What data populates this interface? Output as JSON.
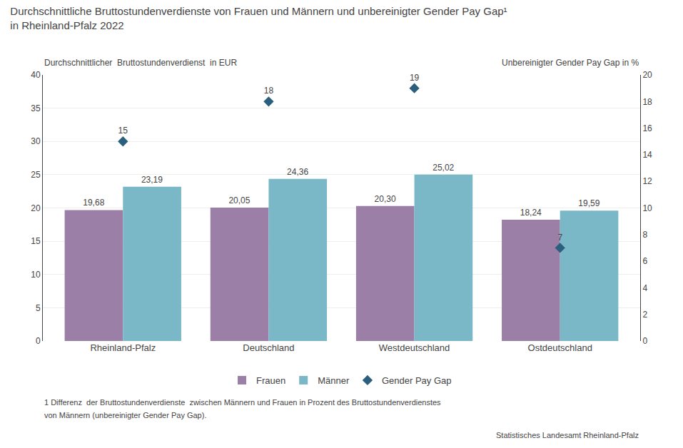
{
  "chart_data": {
    "type": "bar",
    "title": "Durchschnittliche Bruttostundenverdienste von Frauen und Männern und unbereinigter Gender Pay Gap¹",
    "subtitle": "in Rheinland-Pfalz 2022",
    "ylabel": "Durchschnittlicher  Bruttostundenverdienst  in EUR",
    "y2label": "Unbereinigter Gender Pay Gap in %",
    "categories": [
      "Rheinland-Pfalz",
      "Deutschland",
      "Westdeutschland",
      "Ostdeutschland"
    ],
    "series": [
      {
        "name": "Frauen",
        "type": "bar",
        "color": "#9b7fa6",
        "values": [
          19.68,
          20.05,
          20.3,
          18.24
        ],
        "value_labels": [
          "19,68",
          "20,05",
          "20,30",
          "18,24"
        ]
      },
      {
        "name": "Männer",
        "type": "bar",
        "color": "#7ab8c8",
        "values": [
          23.19,
          24.36,
          25.02,
          19.59
        ],
        "value_labels": [
          "23,19",
          "24,36",
          "25,02",
          "19,59"
        ]
      },
      {
        "name": "Gender Pay Gap",
        "type": "scatter",
        "marker": "diamond",
        "color": "#2b5f7e",
        "axis": "y2",
        "values": [
          15,
          18,
          19,
          7
        ]
      }
    ],
    "ylim": [
      0,
      40
    ],
    "yticks": [
      0,
      5,
      10,
      15,
      20,
      25,
      30,
      35,
      40
    ],
    "y2lim": [
      0,
      20
    ],
    "y2ticks": [
      0,
      2,
      4,
      6,
      8,
      10,
      12,
      14,
      16,
      18,
      20
    ],
    "grid": true,
    "data_labels": true,
    "legend": "bottom",
    "annotations": [
      "1 Differenz  der Bruttostundenverdienste  zwischen Männern und Frauen in Prozent des Bruttostundenverdienstes",
      "von Männern (unbereinigter Gender Pay Gap).",
      "Statistisches Landesamt Rheinland-Pfalz"
    ]
  }
}
